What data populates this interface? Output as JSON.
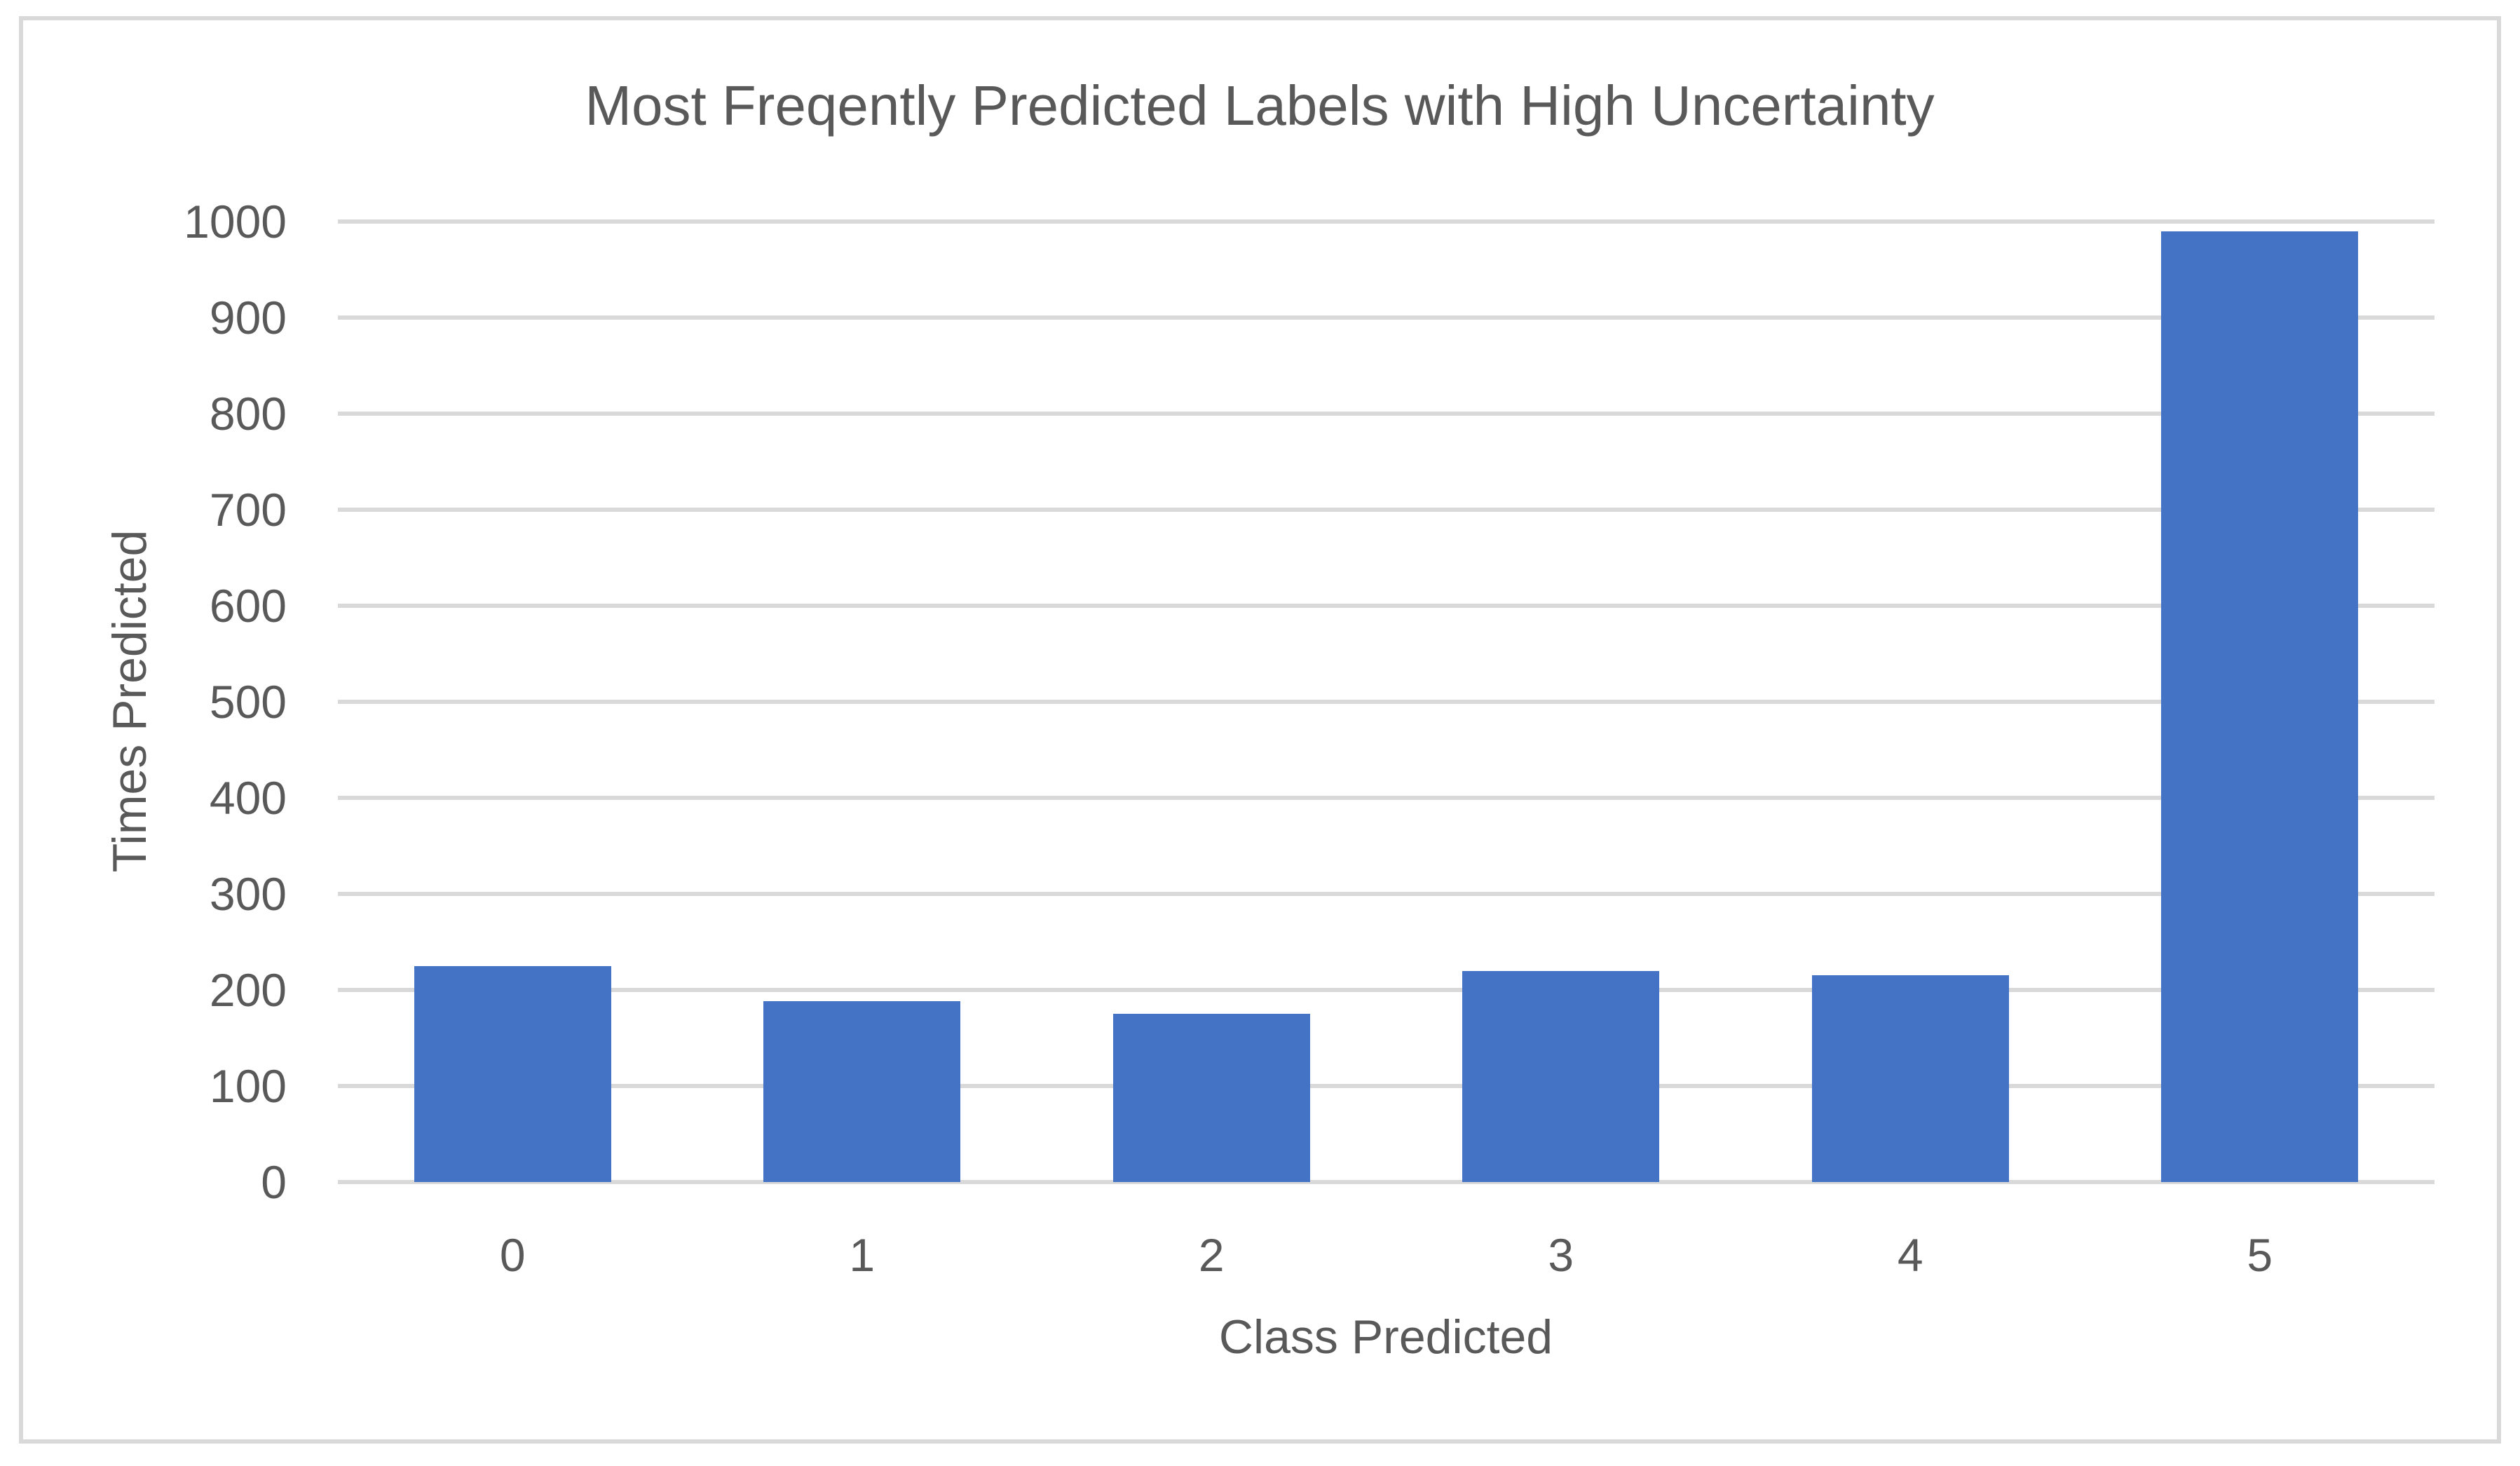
{
  "chart_data": {
    "type": "bar",
    "title": "Most Freqently Predicted Labels with High Uncertainty",
    "categories": [
      "0",
      "1",
      "2",
      "3",
      "4",
      "5"
    ],
    "values": [
      225,
      188,
      175,
      220,
      215,
      990
    ],
    "xlabel": "Class Predicted",
    "ylabel": "Times Predicted",
    "ylim": [
      0,
      1000
    ],
    "ytick_step": 100,
    "ytick_labels": [
      "0",
      "100",
      "200",
      "300",
      "400",
      "500",
      "600",
      "700",
      "800",
      "900",
      "1000"
    ],
    "grid": true,
    "legend": "none",
    "colors": {
      "bar": "#4472C4",
      "gridline": "#D9D9D9",
      "text": "#595959",
      "frame_border": "#D9D9D9",
      "background": "#FFFFFF"
    }
  }
}
